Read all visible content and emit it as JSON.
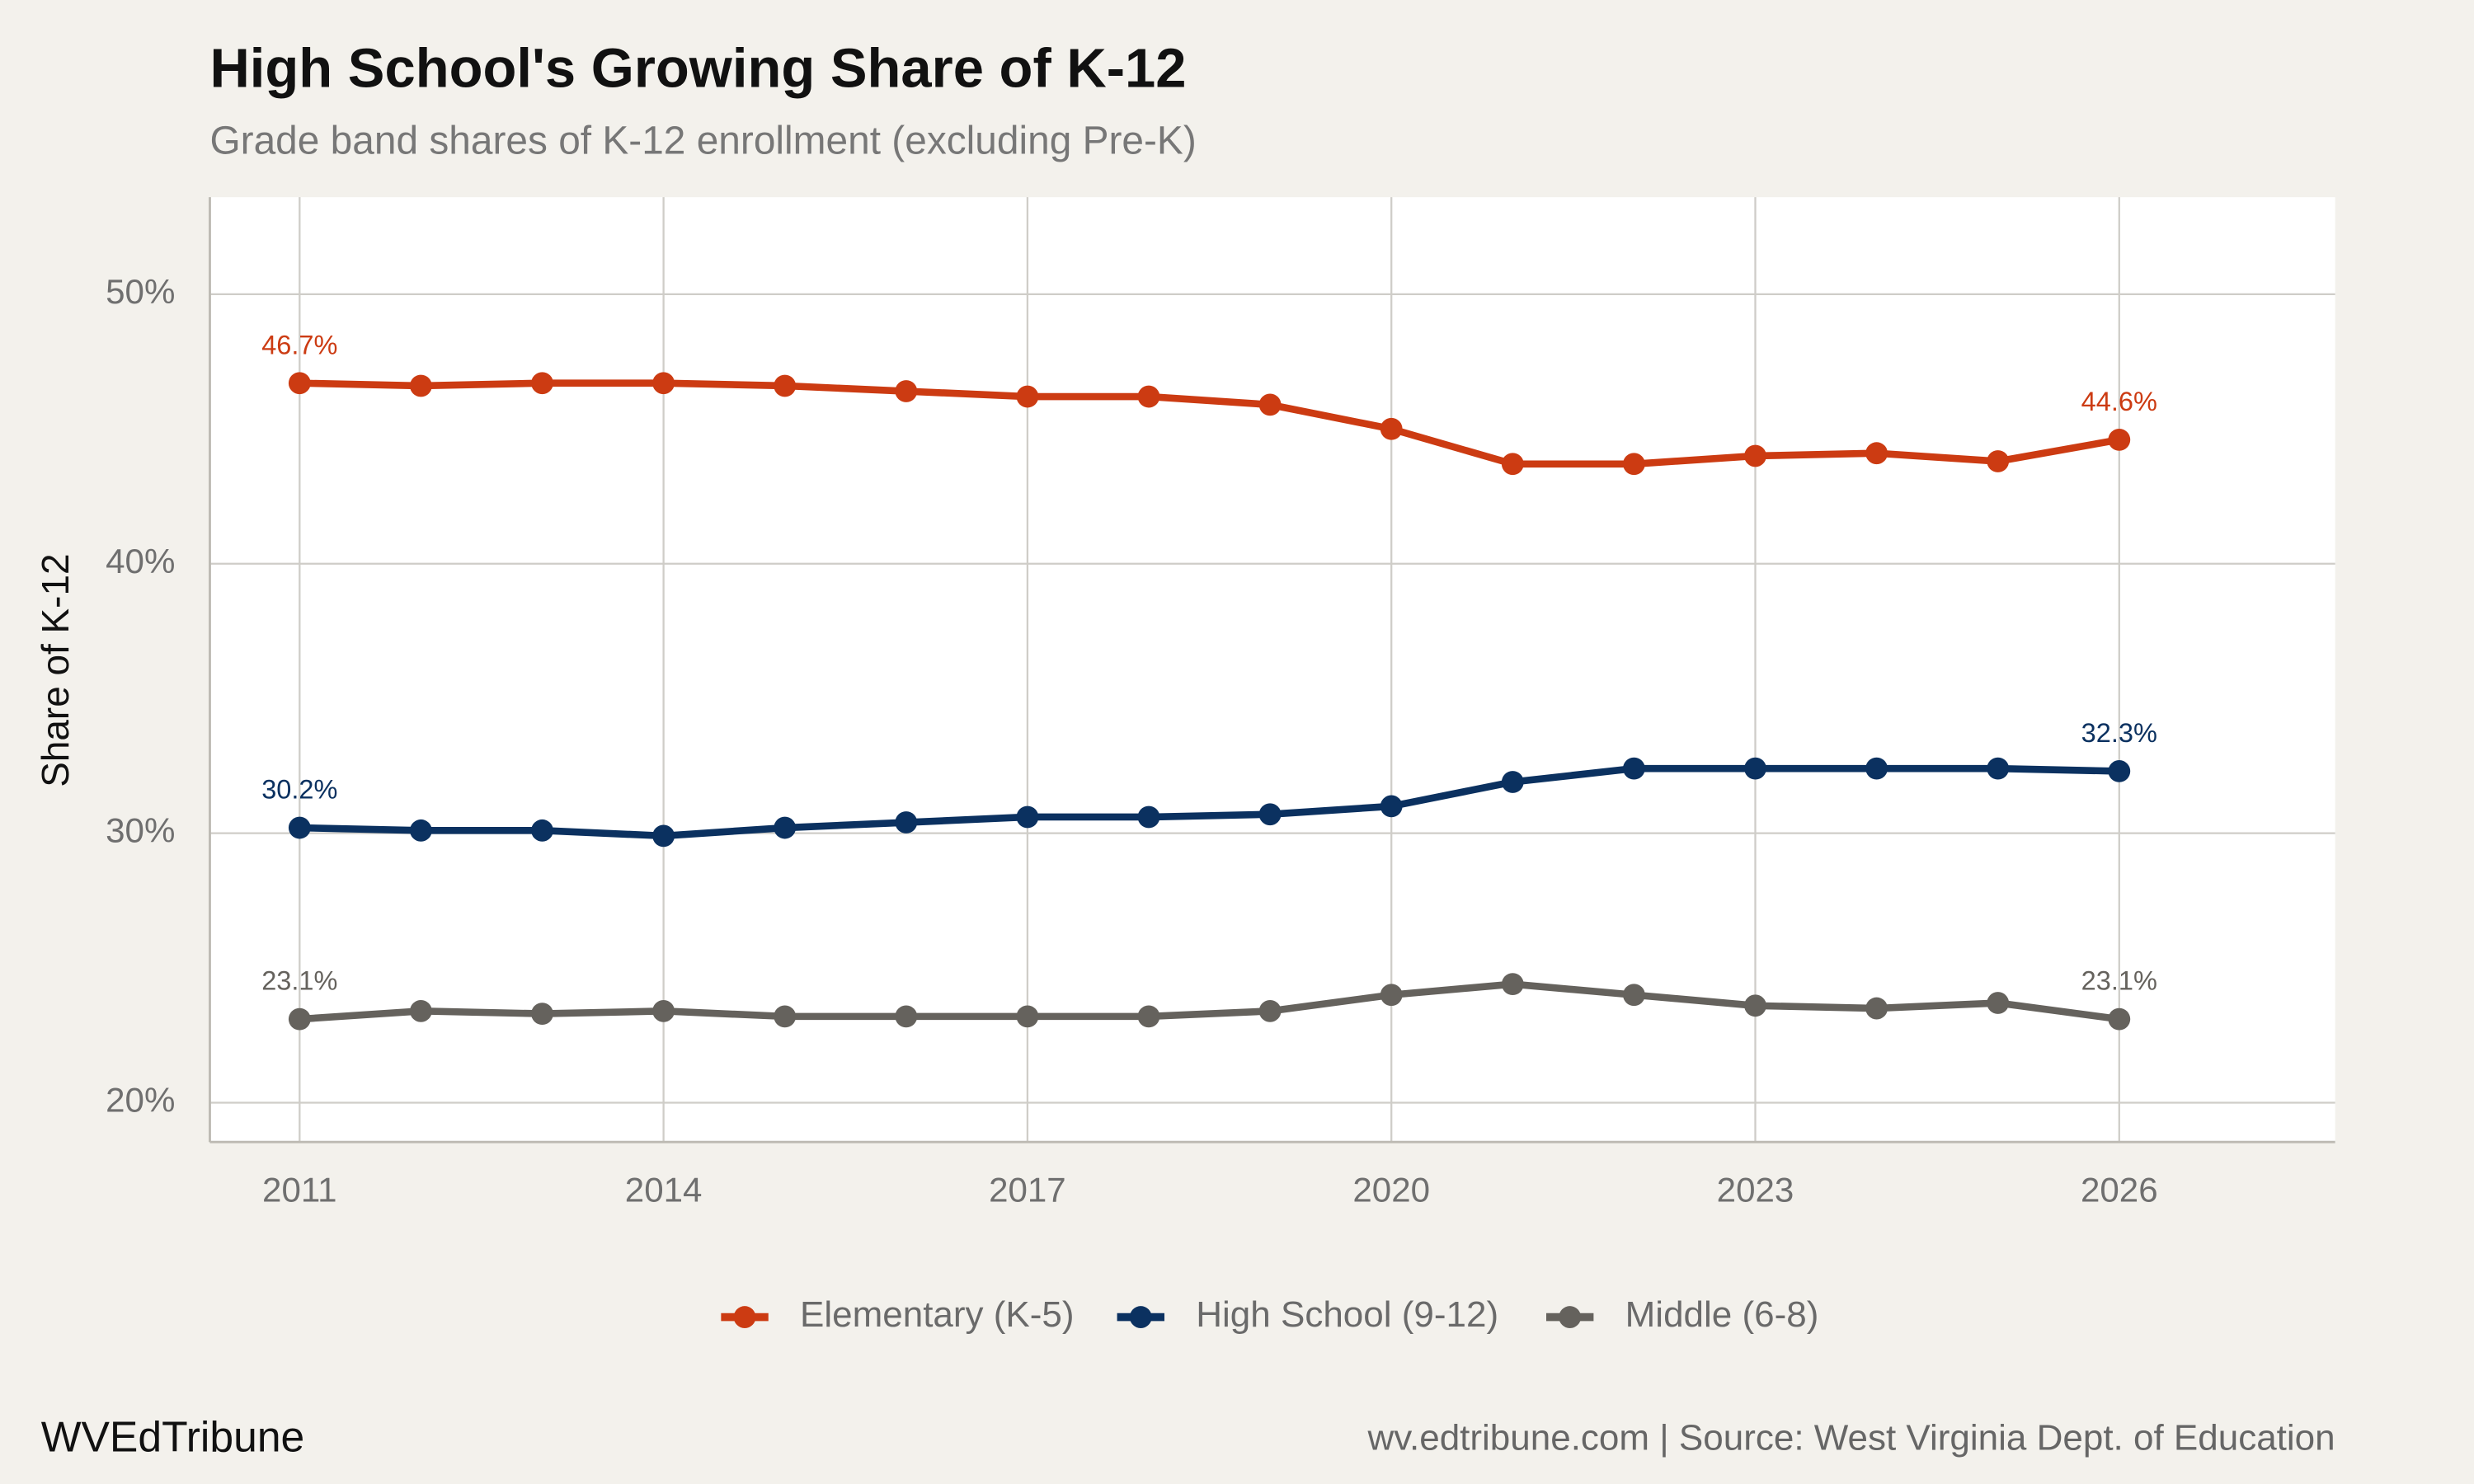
{
  "chart_data": {
    "type": "line",
    "title": "High School's Growing Share of K-12",
    "subtitle": "Grade band shares of K-12 enrollment (excluding Pre-K)",
    "y_label": "Share of K-12",
    "x": [
      2011,
      2012,
      2013,
      2014,
      2015,
      2016,
      2017,
      2018,
      2019,
      2020,
      2021,
      2022,
      2023,
      2024,
      2025,
      2026
    ],
    "series": [
      {
        "name": "Elementary (K-5)",
        "color": "#cc3b12",
        "values": [
          46.7,
          46.6,
          46.7,
          46.7,
          46.6,
          46.4,
          46.2,
          46.2,
          45.9,
          45.0,
          43.7,
          43.7,
          44.0,
          44.1,
          43.8,
          44.6
        ],
        "value_labels": [
          "46.7%",
          null,
          null,
          null,
          null,
          null,
          null,
          null,
          null,
          null,
          null,
          null,
          null,
          null,
          null,
          "44.6%"
        ]
      },
      {
        "name": "High School (9-12)",
        "color": "#0b3160",
        "values": [
          30.2,
          30.1,
          30.1,
          29.9,
          30.2,
          30.4,
          30.6,
          30.6,
          30.7,
          31.0,
          31.9,
          32.4,
          32.4,
          32.4,
          32.4,
          32.3
        ],
        "value_labels": [
          "30.2%",
          null,
          null,
          null,
          null,
          null,
          null,
          null,
          null,
          null,
          null,
          null,
          null,
          null,
          null,
          "32.3%"
        ]
      },
      {
        "name": "Middle (6-8)",
        "color": "#65625d",
        "values": [
          23.1,
          23.4,
          23.3,
          23.4,
          23.2,
          23.2,
          23.2,
          23.2,
          23.4,
          24.0,
          24.4,
          24.0,
          23.6,
          23.5,
          23.7,
          23.1
        ],
        "value_labels": [
          "23.1%",
          null,
          null,
          null,
          null,
          null,
          null,
          null,
          null,
          null,
          null,
          null,
          null,
          null,
          null,
          "23.1%"
        ]
      }
    ],
    "xlim": [
      2010.26,
      2027.78
    ],
    "ylim": [
      18.54,
      53.6
    ],
    "xticks": [
      2011,
      2014,
      2017,
      2020,
      2023,
      2026
    ],
    "yticks": [
      {
        "value": 20,
        "label": "20%"
      },
      {
        "value": 30,
        "label": "30%"
      },
      {
        "value": 40,
        "label": "40%"
      },
      {
        "value": 50,
        "label": "50%"
      }
    ],
    "grid": true,
    "legend": "bottom",
    "brand": "WVEdTribune",
    "caption": "wv.edtribune.com | Source: West Virginia Dept. of Education"
  }
}
